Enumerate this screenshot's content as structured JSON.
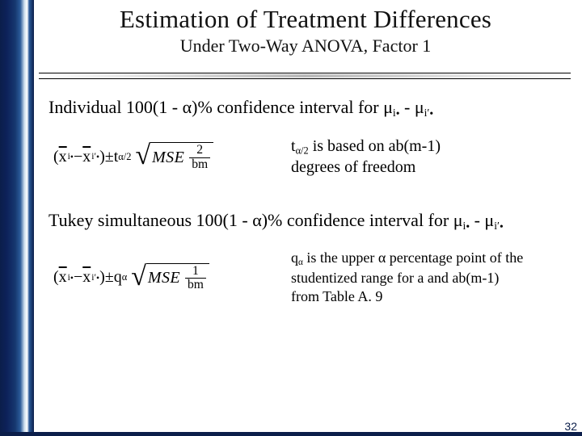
{
  "page_number": "32",
  "header": {
    "title": "Estimation of Treatment Differences",
    "subtitle": "Under Two-Way ANOVA, Factor 1"
  },
  "colors": {
    "sidebar_dark": "#0b1e4a",
    "sidebar_mid": "#2c5c9a",
    "sidebar_light": "#cfe0ee",
    "text": "#000000",
    "background": "#ffffff"
  },
  "section1": {
    "intro_prefix": "Individual 100(1 - ",
    "intro_mid": ")% confidence interval for ",
    "alpha": "α",
    "mu_i": "μ",
    "idx_i": "i",
    "idx_ip": "i′",
    "bullet": "•",
    "desc_l1_a": "t",
    "desc_l1_sub": "α/2",
    "desc_l1_b": " is based on ab(m-1)",
    "desc_l2": "degrees of freedom",
    "formula": {
      "xbar": "x̄",
      "open": "(",
      "close": ")",
      "minus": " − ",
      "pm": " ± ",
      "t": "t",
      "tsub": "α/2",
      "mse": "MSE",
      "num": "2",
      "den": "bm"
    }
  },
  "section2": {
    "intro_prefix": "Tukey simultaneous 100(1 - ",
    "intro_mid": ")% confidence interval for ",
    "desc_l1_a": "q",
    "desc_l1_sub": "α",
    "desc_l1_b": " is the upper ",
    "desc_l1_c": " percentage point of the",
    "desc_l2": "studentized range for a and ab(m-1)",
    "desc_l3": "from Table A. 9",
    "formula": {
      "q": "q",
      "qsub": "α",
      "num": "1",
      "den": "bm"
    }
  }
}
